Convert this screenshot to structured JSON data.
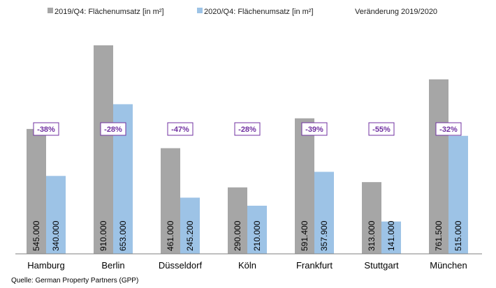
{
  "legend": {
    "series1": "2019/Q4: Flächenumsatz [in m²]",
    "series2": "2020/Q4: Flächenumsatz [in m²]",
    "change": "Veränderung 2019/2020"
  },
  "source": "Quelle: German Property Partners (GPP)",
  "colors": {
    "series1": "#a6a6a6",
    "series2": "#9dc3e6",
    "change_border": "#7030a0",
    "change_text": "#7030a0",
    "axis": "#808080"
  },
  "chart_data": {
    "type": "bar",
    "categories": [
      "Hamburg",
      "Berlin",
      "Düsseldorf",
      "Köln",
      "Frankfurt",
      "Stuttgart",
      "München"
    ],
    "series": [
      {
        "name": "2019/Q4: Flächenumsatz [in m²]",
        "values": [
          545000,
          910000,
          461000,
          290000,
          591400,
          313000,
          761500
        ],
        "labels": [
          "545.000",
          "910.000",
          "461.000",
          "290.000",
          "591.400",
          "313.000",
          "761.500"
        ]
      },
      {
        "name": "2020/Q4: Flächenumsatz [in m²]",
        "values": [
          340000,
          653000,
          245200,
          210000,
          357900,
          141000,
          515000
        ],
        "labels": [
          "340.000",
          "653.000",
          "245.200",
          "210.000",
          "357.900",
          "141.000",
          "515.000"
        ]
      }
    ],
    "changes": [
      "-38%",
      "-28%",
      "-47%",
      "-28%",
      "-39%",
      "-55%",
      "-32%"
    ],
    "change_series_name": "Veränderung 2019/2020",
    "ylim": [
      0,
      910000
    ]
  }
}
